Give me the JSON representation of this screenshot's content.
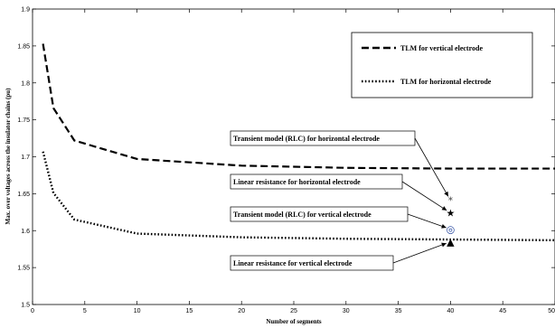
{
  "chart_data": {
    "type": "line",
    "title": "",
    "xlabel": "Number of segments",
    "ylabel": "Max. over voltages across the insulator chains (pu)",
    "xlim": [
      0,
      50
    ],
    "ylim": [
      1.5,
      1.9
    ],
    "xticks": [
      0,
      5,
      10,
      15,
      20,
      25,
      30,
      35,
      40,
      45,
      50
    ],
    "yticks": [
      1.5,
      1.55,
      1.6,
      1.65,
      1.7,
      1.75,
      1.8,
      1.85,
      1.9
    ],
    "grid": false,
    "legend_position": "top-right",
    "series": [
      {
        "name": "TLM for vertical electrode",
        "style": "dashed",
        "color": "#000000",
        "x": [
          1,
          2,
          4,
          10,
          20,
          30,
          40,
          50
        ],
        "y": [
          1.853,
          1.766,
          1.722,
          1.697,
          1.688,
          1.685,
          1.684,
          1.684
        ]
      },
      {
        "name": "TLM for horizontal electrode",
        "style": "dotted",
        "color": "#000000",
        "x": [
          1,
          2,
          4,
          10,
          20,
          30,
          40,
          50
        ],
        "y": [
          1.707,
          1.651,
          1.615,
          1.596,
          1.591,
          1.589,
          1.588,
          1.587
        ]
      }
    ],
    "markers": [
      {
        "label": "Transient model (RLC) for horizontal electrode",
        "symbol": "*",
        "x": 40,
        "y": 1.641,
        "color": "#444444"
      },
      {
        "label": "Linear resistance for horizontal  electrode",
        "symbol": "★",
        "x": 40,
        "y": 1.624,
        "color": "#000000"
      },
      {
        "label": "Transient model (RLC) for vertical  electrode",
        "symbol": "◎",
        "x": 40,
        "y": 1.602,
        "color": "#1a3d99"
      },
      {
        "label": "Linear resistance for vertical electrode",
        "symbol": "▲",
        "x": 40,
        "y": 1.585,
        "color": "#000000"
      }
    ]
  }
}
